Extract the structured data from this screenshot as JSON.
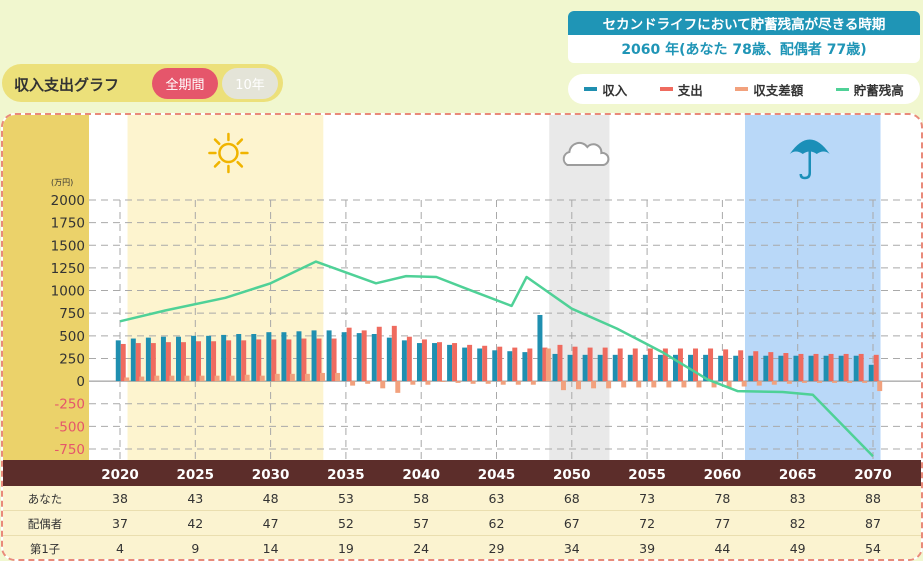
{
  "header": {
    "title": "収入支出グラフ",
    "tabs": [
      "全期間",
      "10年"
    ]
  },
  "depletion": {
    "title": "セカンドライフにおいて貯蓄残高が尽きる時期",
    "value": "2060 年(あなた 78歳、配偶者 77歳)"
  },
  "legend": [
    {
      "label": "収入",
      "color": "#1f8fb0"
    },
    {
      "label": "支出",
      "color": "#ef6b5f"
    },
    {
      "label": "収支差額",
      "color": "#f2a17d"
    },
    {
      "label": "貯蓄残高",
      "color": "#4fd197"
    }
  ],
  "icons": {
    "period1": "sun-icon",
    "period2": "cloud-icon",
    "period3": "umbrella-icon"
  },
  "table": {
    "rows": [
      {
        "label": "あなた",
        "values": [
          "38",
          "43",
          "48",
          "53",
          "58",
          "63",
          "68",
          "73",
          "78",
          "83",
          "88"
        ]
      },
      {
        "label": "配偶者",
        "values": [
          "37",
          "42",
          "47",
          "52",
          "57",
          "62",
          "67",
          "72",
          "77",
          "82",
          "87"
        ]
      },
      {
        "label": "第1子",
        "values": [
          "4",
          "9",
          "14",
          "19",
          "24",
          "29",
          "34",
          "39",
          "44",
          "49",
          "54"
        ]
      }
    ]
  },
  "chart_data": {
    "type": "bar",
    "unit": "(万円)",
    "x_start": 2020,
    "x_end": 2070,
    "xticks": [
      2020,
      2025,
      2030,
      2035,
      2040,
      2045,
      2050,
      2055,
      2060,
      2065,
      2070
    ],
    "yticks": [
      2000,
      1750,
      1500,
      1250,
      1000,
      750,
      500,
      250,
      0,
      -250,
      -500,
      -750
    ],
    "ylim": [
      -850,
      2000
    ],
    "periods": [
      {
        "start": 2020.5,
        "end": 2033.5,
        "color": "#fdf4cf"
      },
      {
        "start": 2048.5,
        "end": 2052.5,
        "color": "#e9e9e9"
      },
      {
        "start": 2061.5,
        "end": 2070.5,
        "color": "#b9d8f8"
      }
    ],
    "series": [
      {
        "name": "収入",
        "type": "bar",
        "values": [
          450,
          470,
          480,
          490,
          490,
          500,
          500,
          510,
          520,
          520,
          540,
          540,
          550,
          560,
          560,
          540,
          530,
          520,
          480,
          450,
          420,
          420,
          400,
          370,
          360,
          340,
          330,
          320,
          730,
          300,
          290,
          290,
          290,
          290,
          290,
          290,
          290,
          290,
          290,
          290,
          280,
          280,
          280,
          280,
          280,
          280,
          280,
          280,
          280,
          280,
          180
        ]
      },
      {
        "name": "支出",
        "type": "bar",
        "values": [
          410,
          420,
          420,
          430,
          430,
          440,
          440,
          450,
          450,
          460,
          460,
          460,
          470,
          470,
          470,
          590,
          560,
          600,
          610,
          490,
          460,
          430,
          420,
          400,
          390,
          380,
          370,
          360,
          370,
          400,
          380,
          370,
          370,
          360,
          360,
          360,
          360,
          360,
          360,
          360,
          350,
          340,
          330,
          320,
          310,
          300,
          300,
          300,
          300,
          300,
          290
        ]
      },
      {
        "name": "収支差額",
        "type": "bar",
        "values": [
          40,
          50,
          60,
          60,
          60,
          60,
          60,
          60,
          70,
          60,
          80,
          80,
          80,
          90,
          90,
          -50,
          -30,
          -80,
          -130,
          -40,
          -40,
          -10,
          -20,
          -30,
          -30,
          -40,
          -40,
          -40,
          360,
          -100,
          -90,
          -80,
          -80,
          -70,
          -70,
          -70,
          -70,
          -70,
          -70,
          -70,
          -70,
          -60,
          -50,
          -40,
          -30,
          -20,
          -20,
          -20,
          -20,
          -20,
          -110
        ]
      },
      {
        "name": "貯蓄残高",
        "type": "line",
        "points": [
          [
            2020,
            660
          ],
          [
            2023,
            780
          ],
          [
            2027,
            920
          ],
          [
            2030,
            1080
          ],
          [
            2033,
            1320
          ],
          [
            2037,
            1080
          ],
          [
            2039,
            1160
          ],
          [
            2041,
            1150
          ],
          [
            2043,
            1020
          ],
          [
            2046,
            830
          ],
          [
            2047,
            1150
          ],
          [
            2050,
            800
          ],
          [
            2053,
            580
          ],
          [
            2056,
            320
          ],
          [
            2059,
            20
          ],
          [
            2061,
            -110
          ],
          [
            2064,
            -120
          ],
          [
            2066,
            -150
          ],
          [
            2070,
            -830
          ]
        ]
      }
    ]
  }
}
